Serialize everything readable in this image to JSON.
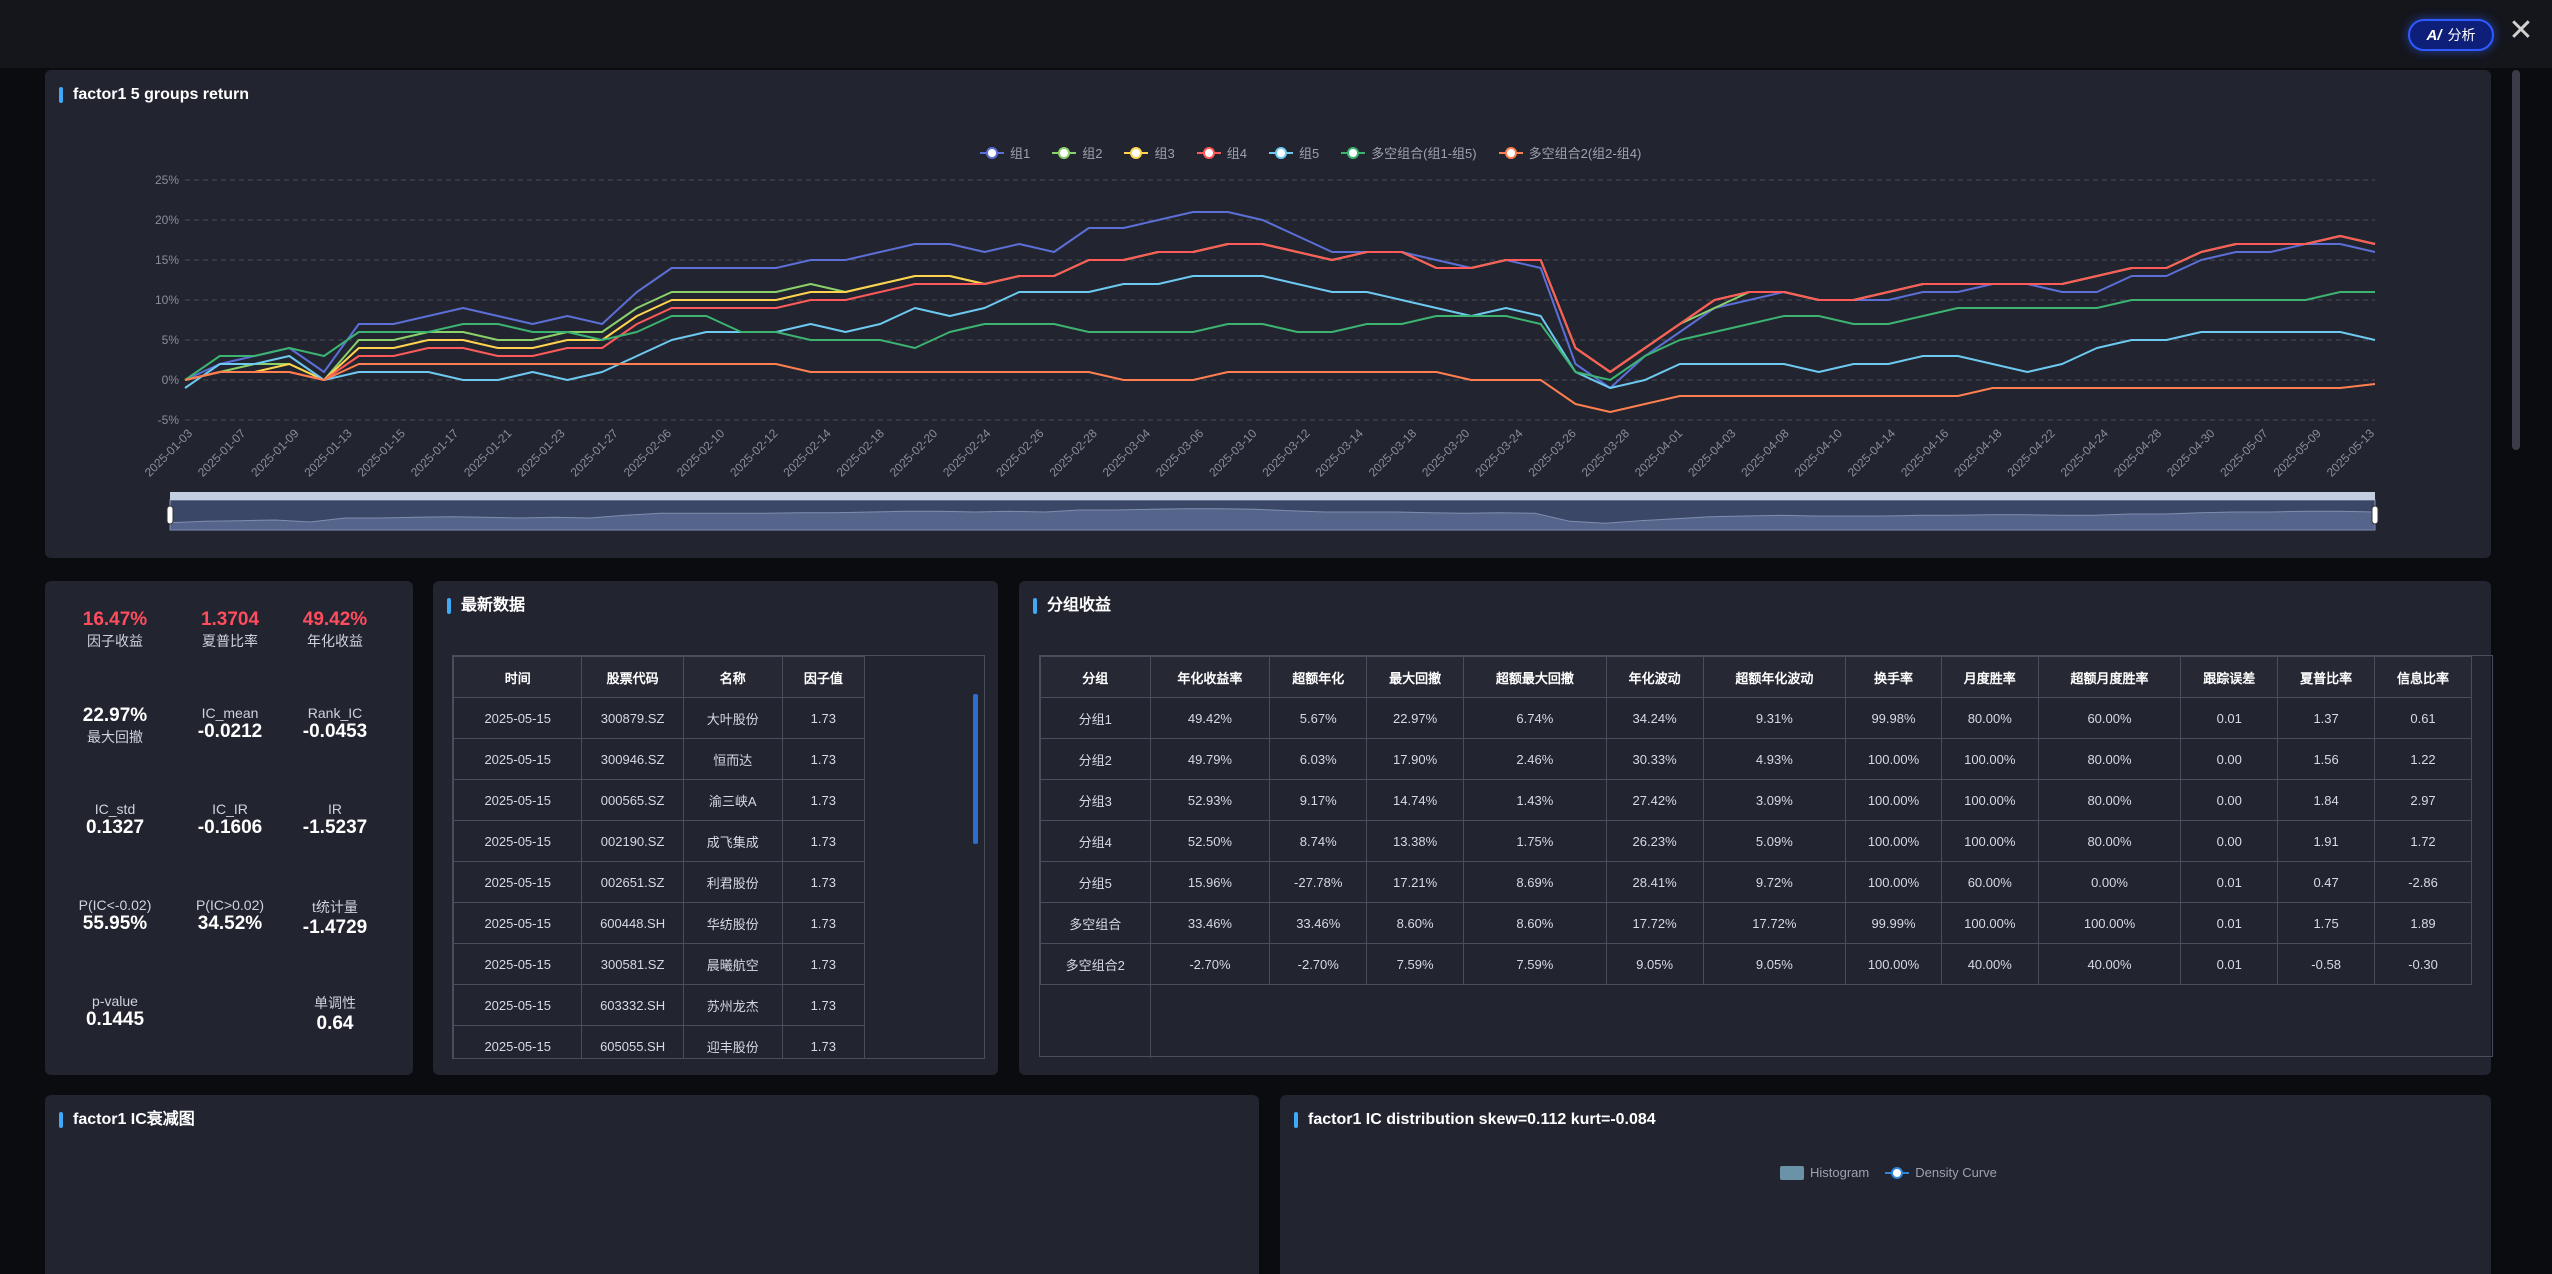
{
  "topbar": {
    "ai_label": "分析",
    "ai_icon": "ai-icon",
    "close_icon": "close-icon"
  },
  "return_panel": {
    "title": "factor1 5 groups return"
  },
  "chart_data": {
    "type": "line",
    "title": "factor1 5 groups return",
    "y_ticks": [
      "25%",
      "20%",
      "15%",
      "10%",
      "5%",
      "0%",
      "-5%"
    ],
    "ylim": [
      -5,
      25
    ],
    "x_ticks": [
      "2025-01-03",
      "2025-01-07",
      "2025-01-09",
      "2025-01-13",
      "2025-01-15",
      "2025-01-17",
      "2025-01-21",
      "2025-01-23",
      "2025-01-27",
      "2025-02-06",
      "2025-02-10",
      "2025-02-12",
      "2025-02-14",
      "2025-02-18",
      "2025-02-20",
      "2025-02-24",
      "2025-02-26",
      "2025-02-28",
      "2025-03-04",
      "2025-03-06",
      "2025-03-10",
      "2025-03-12",
      "2025-03-14",
      "2025-03-18",
      "2025-03-20",
      "2025-03-24",
      "2025-03-26",
      "2025-03-28",
      "2025-04-01",
      "2025-04-03",
      "2025-04-08",
      "2025-04-10",
      "2025-04-14",
      "2025-04-16",
      "2025-04-18",
      "2025-04-22",
      "2025-04-24",
      "2025-04-28",
      "2025-04-30",
      "2025-05-07",
      "2025-05-09",
      "2025-05-13"
    ],
    "grid": true,
    "legend_position": "top-center",
    "series": [
      {
        "name": "组1",
        "color": "#5b6fd6",
        "values": [
          0,
          2,
          3,
          4,
          1,
          7,
          7,
          8,
          9,
          8,
          7,
          8,
          7,
          11,
          14,
          14,
          14,
          14,
          15,
          15,
          16,
          17,
          17,
          16,
          17,
          16,
          19,
          19,
          20,
          21,
          21,
          20,
          18,
          16,
          16,
          16,
          15,
          14,
          15,
          14,
          2,
          -1,
          3,
          6,
          9,
          10,
          11,
          10,
          10,
          10,
          11,
          11,
          12,
          12,
          11,
          11,
          13,
          13,
          15,
          16,
          16,
          17,
          17,
          16
        ]
      },
      {
        "name": "组2",
        "color": "#8bd16a",
        "values": [
          0,
          1,
          2,
          2,
          0,
          5,
          5,
          6,
          6,
          5,
          5,
          6,
          6,
          9,
          11,
          11,
          11,
          11,
          12,
          11,
          12,
          13,
          13,
          12,
          13,
          13,
          15,
          15,
          16,
          16,
          17,
          17,
          16,
          15,
          16,
          16,
          14,
          14,
          15,
          15,
          4,
          1,
          4,
          7,
          9,
          11,
          11,
          10,
          10,
          11,
          12,
          12,
          12,
          12,
          12,
          13,
          14,
          14,
          16,
          17,
          17,
          17,
          18,
          17
        ]
      },
      {
        "name": "组3",
        "color": "#ffd34d",
        "values": [
          0,
          1,
          1,
          2,
          0,
          4,
          4,
          5,
          5,
          4,
          4,
          5,
          5,
          8,
          10,
          10,
          10,
          10,
          11,
          11,
          12,
          13,
          13,
          12,
          13,
          13,
          15,
          15,
          16,
          16,
          17,
          17,
          16,
          15,
          16,
          16,
          14,
          14,
          15,
          15,
          4,
          1,
          4,
          7,
          10,
          11,
          11,
          10,
          10,
          11,
          12,
          12,
          12,
          12,
          12,
          13,
          14,
          14,
          16,
          17,
          17,
          17,
          18,
          17
        ]
      },
      {
        "name": "组4",
        "color": "#ff5a5a",
        "values": [
          0,
          1,
          1,
          1,
          0,
          3,
          3,
          4,
          4,
          3,
          3,
          4,
          4,
          7,
          9,
          9,
          9,
          9,
          10,
          10,
          11,
          12,
          12,
          12,
          13,
          13,
          15,
          15,
          16,
          16,
          17,
          17,
          16,
          15,
          16,
          16,
          14,
          14,
          15,
          15,
          4,
          1,
          4,
          7,
          10,
          11,
          11,
          10,
          10,
          11,
          12,
          12,
          12,
          12,
          12,
          13,
          14,
          14,
          16,
          17,
          17,
          17,
          18,
          17
        ]
      },
      {
        "name": "组5",
        "color": "#6ec9f0",
        "values": [
          -1,
          2,
          2,
          3,
          0,
          1,
          1,
          1,
          0,
          0,
          1,
          0,
          1,
          3,
          5,
          6,
          6,
          6,
          7,
          6,
          7,
          9,
          8,
          9,
          11,
          11,
          11,
          12,
          12,
          13,
          13,
          13,
          12,
          11,
          11,
          10,
          9,
          8,
          9,
          8,
          1,
          -1,
          0,
          2,
          2,
          2,
          2,
          1,
          2,
          2,
          3,
          3,
          2,
          1,
          2,
          4,
          5,
          5,
          6,
          6,
          6,
          6,
          6,
          5
        ]
      },
      {
        "name": "多空组合(组1-组5)",
        "color": "#3cb371",
        "values": [
          0,
          3,
          3,
          4,
          3,
          6,
          6,
          6,
          7,
          7,
          6,
          6,
          5,
          6,
          8,
          8,
          6,
          6,
          5,
          5,
          5,
          4,
          6,
          7,
          7,
          7,
          6,
          6,
          6,
          6,
          7,
          7,
          6,
          6,
          7,
          7,
          8,
          8,
          8,
          7,
          1,
          0,
          3,
          5,
          6,
          7,
          8,
          8,
          7,
          7,
          8,
          9,
          9,
          9,
          9,
          9,
          10,
          10,
          10,
          10,
          10,
          10,
          11,
          11
        ]
      },
      {
        "name": "多空组合2(组2-组4)",
        "color": "#ff7f50",
        "values": [
          0,
          1,
          1,
          1,
          0,
          2,
          2,
          2,
          2,
          2,
          2,
          2,
          2,
          2,
          2,
          2,
          2,
          2,
          1,
          1,
          1,
          1,
          1,
          1,
          1,
          1,
          1,
          0,
          0,
          0,
          1,
          1,
          1,
          1,
          1,
          1,
          1,
          0,
          0,
          0,
          -3,
          -4,
          -3,
          -2,
          -2,
          -2,
          -2,
          -2,
          -2,
          -2,
          -2,
          -2,
          -1,
          -1,
          -1,
          -1,
          -1,
          -1,
          -1,
          -1,
          -1,
          -1,
          -1,
          -0.5
        ]
      }
    ]
  },
  "stats": {
    "factor_return": {
      "value": "16.47%",
      "label": "因子收益"
    },
    "sharpe": {
      "value": "1.3704",
      "label": "夏普比率"
    },
    "annual_return": {
      "value": "49.42%",
      "label": "年化收益"
    },
    "max_drawdown": {
      "value": "22.97%",
      "label": "最大回撤"
    },
    "ic_mean": {
      "value": "-0.0212",
      "label": "IC_mean"
    },
    "rank_ic": {
      "value": "-0.0453",
      "label": "Rank_IC"
    },
    "ic_std": {
      "value": "0.1327",
      "label": "IC_std"
    },
    "ic_ir": {
      "value": "-0.1606",
      "label": "IC_IR"
    },
    "ir": {
      "value": "-1.5237",
      "label": "IR"
    },
    "p_ic_lt": {
      "value": "55.95%",
      "label": "P(IC<-0.02)"
    },
    "p_ic_gt": {
      "value": "34.52%",
      "label": "P(IC>0.02)"
    },
    "t_stat": {
      "value": "-1.4729",
      "label": "t统计量"
    },
    "p_value": {
      "value": "0.1445",
      "label": "p-value"
    },
    "monotonic": {
      "value": "0.64",
      "label": "单调性"
    }
  },
  "latest": {
    "title": "最新数据",
    "headers": [
      "时间",
      "股票代码",
      "名称",
      "因子值"
    ],
    "rows": [
      [
        "2025-05-15",
        "300879.SZ",
        "大叶股份",
        "1.73"
      ],
      [
        "2025-05-15",
        "300946.SZ",
        "恒而达",
        "1.73"
      ],
      [
        "2025-05-15",
        "000565.SZ",
        "渝三峡A",
        "1.73"
      ],
      [
        "2025-05-15",
        "002190.SZ",
        "成飞集成",
        "1.73"
      ],
      [
        "2025-05-15",
        "002651.SZ",
        "利君股份",
        "1.73"
      ],
      [
        "2025-05-15",
        "600448.SH",
        "华纺股份",
        "1.73"
      ],
      [
        "2025-05-15",
        "300581.SZ",
        "晨曦航空",
        "1.73"
      ],
      [
        "2025-05-15",
        "603332.SH",
        "苏州龙杰",
        "1.73"
      ],
      [
        "2025-05-15",
        "605055.SH",
        "迎丰股份",
        "1.73"
      ]
    ]
  },
  "group": {
    "title": "分组收益",
    "headers": [
      "分组",
      "年化收益率",
      "超额年化",
      "最大回撤",
      "超额最大回撤",
      "年化波动",
      "超额年化波动",
      "换手率",
      "月度胜率",
      "超额月度胜率",
      "跟踪误差",
      "夏普比率",
      "信息比率"
    ],
    "rows": [
      [
        "分组1",
        "49.42%",
        "5.67%",
        "22.97%",
        "6.74%",
        "34.24%",
        "9.31%",
        "99.98%",
        "80.00%",
        "60.00%",
        "0.01",
        "1.37",
        "0.61"
      ],
      [
        "分组2",
        "49.79%",
        "6.03%",
        "17.90%",
        "2.46%",
        "30.33%",
        "4.93%",
        "100.00%",
        "100.00%",
        "80.00%",
        "0.00",
        "1.56",
        "1.22"
      ],
      [
        "分组3",
        "52.93%",
        "9.17%",
        "14.74%",
        "1.43%",
        "27.42%",
        "3.09%",
        "100.00%",
        "100.00%",
        "80.00%",
        "0.00",
        "1.84",
        "2.97"
      ],
      [
        "分组4",
        "52.50%",
        "8.74%",
        "13.38%",
        "1.75%",
        "26.23%",
        "5.09%",
        "100.00%",
        "100.00%",
        "80.00%",
        "0.00",
        "1.91",
        "1.72"
      ],
      [
        "分组5",
        "15.96%",
        "-27.78%",
        "17.21%",
        "8.69%",
        "28.41%",
        "9.72%",
        "100.00%",
        "60.00%",
        "0.00%",
        "0.01",
        "0.47",
        "-2.86"
      ],
      [
        "多空组合",
        "33.46%",
        "33.46%",
        "8.60%",
        "8.60%",
        "17.72%",
        "17.72%",
        "99.99%",
        "100.00%",
        "100.00%",
        "0.01",
        "1.75",
        "1.89"
      ],
      [
        "多空组合2",
        "-2.70%",
        "-2.70%",
        "7.59%",
        "7.59%",
        "9.05%",
        "9.05%",
        "100.00%",
        "40.00%",
        "40.00%",
        "0.01",
        "-0.58",
        "-0.30"
      ]
    ]
  },
  "ic_decay": {
    "title": "factor1 IC衰减图"
  },
  "ic_dist": {
    "title": "factor1 IC distribution skew=0.112 kurt=-0.084",
    "legend": [
      "Histogram",
      "Density Curve"
    ]
  }
}
